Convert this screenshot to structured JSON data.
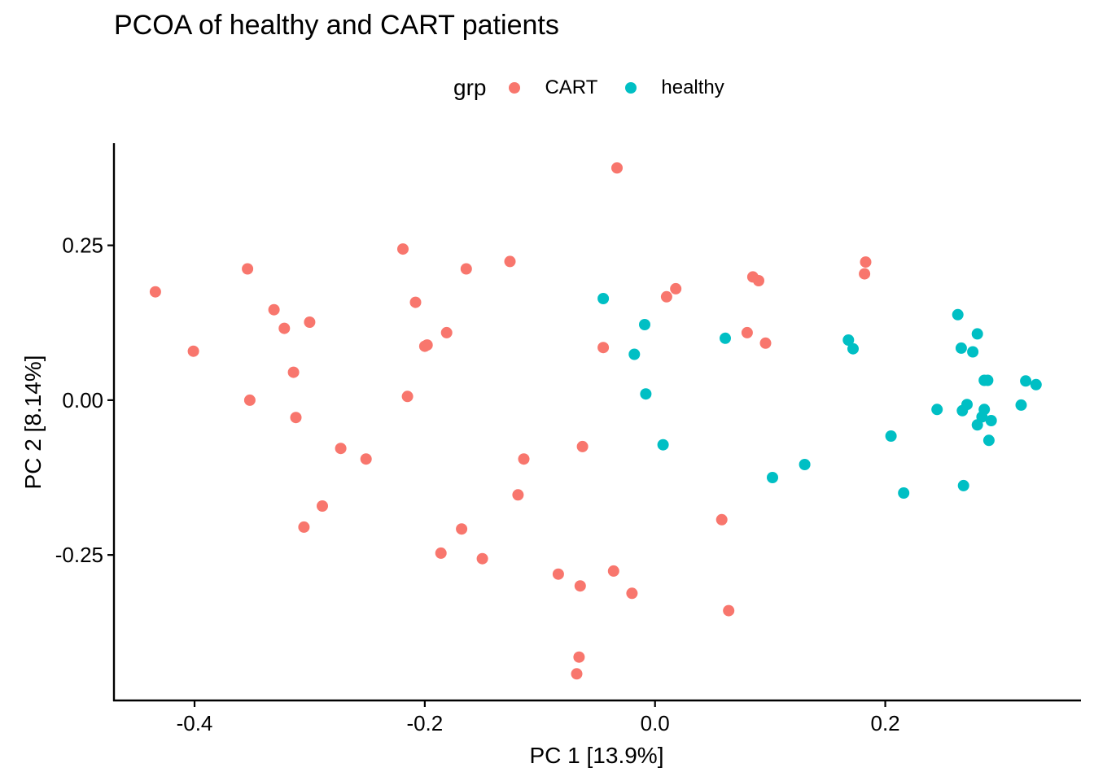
{
  "chart_data": {
    "type": "scatter",
    "title": "PCOA of healthy and CART patients",
    "xlabel": "PC 1 [13.9%]",
    "ylabel": "PC 2 [8.14%]",
    "xlim": [
      -0.47,
      0.37
    ],
    "ylim": [
      -0.485,
      0.415
    ],
    "x_ticks": [
      -0.4,
      -0.2,
      0.0,
      0.2
    ],
    "x_tick_labels": [
      "-0.4",
      "-0.2",
      "0.0",
      "0.2"
    ],
    "y_ticks": [
      -0.25,
      0.0,
      0.25
    ],
    "y_tick_labels": [
      "-0.25",
      "0.00",
      "0.25"
    ],
    "grid": false,
    "legend": {
      "title": "grp",
      "placement": "top"
    },
    "series": [
      {
        "name": "CART",
        "color": "#F8766D",
        "points": [
          [
            -0.434,
            0.175
          ],
          [
            -0.401,
            0.079
          ],
          [
            -0.354,
            0.212
          ],
          [
            -0.352,
            0.0
          ],
          [
            -0.331,
            0.146
          ],
          [
            -0.322,
            0.116
          ],
          [
            -0.314,
            0.045
          ],
          [
            -0.312,
            -0.028
          ],
          [
            -0.3,
            0.126
          ],
          [
            -0.305,
            -0.205
          ],
          [
            -0.289,
            -0.171
          ],
          [
            -0.273,
            -0.078
          ],
          [
            -0.251,
            -0.095
          ],
          [
            -0.219,
            0.244
          ],
          [
            -0.215,
            0.006
          ],
          [
            -0.208,
            0.158
          ],
          [
            -0.2,
            0.087
          ],
          [
            -0.198,
            0.089
          ],
          [
            -0.181,
            0.109
          ],
          [
            -0.164,
            0.212
          ],
          [
            -0.168,
            -0.208
          ],
          [
            -0.186,
            -0.247
          ],
          [
            -0.15,
            -0.256
          ],
          [
            -0.126,
            0.224
          ],
          [
            -0.114,
            -0.095
          ],
          [
            -0.119,
            -0.153
          ],
          [
            -0.063,
            -0.075
          ],
          [
            -0.084,
            -0.281
          ],
          [
            -0.065,
            -0.3
          ],
          [
            -0.066,
            -0.415
          ],
          [
            -0.068,
            -0.442
          ],
          [
            -0.033,
            0.375
          ],
          [
            -0.045,
            0.085
          ],
          [
            -0.036,
            -0.276
          ],
          [
            -0.02,
            -0.312
          ],
          [
            0.01,
            0.167
          ],
          [
            0.018,
            0.18
          ],
          [
            0.058,
            -0.193
          ],
          [
            0.064,
            -0.34
          ],
          [
            0.085,
            0.199
          ],
          [
            0.09,
            0.193
          ],
          [
            0.08,
            0.109
          ],
          [
            0.096,
            0.092
          ],
          [
            0.183,
            0.223
          ],
          [
            0.182,
            0.204
          ]
        ]
      },
      {
        "name": "healthy",
        "color": "#00BFC4",
        "points": [
          [
            -0.045,
            0.164
          ],
          [
            -0.009,
            0.122
          ],
          [
            -0.018,
            0.074
          ],
          [
            -0.008,
            0.01
          ],
          [
            0.007,
            -0.072
          ],
          [
            0.061,
            0.1
          ],
          [
            0.102,
            -0.125
          ],
          [
            0.13,
            -0.104
          ],
          [
            0.168,
            0.097
          ],
          [
            0.172,
            0.083
          ],
          [
            0.205,
            -0.058
          ],
          [
            0.216,
            -0.15
          ],
          [
            0.245,
            -0.015
          ],
          [
            0.263,
            0.138
          ],
          [
            0.266,
            0.084
          ],
          [
            0.267,
            -0.017
          ],
          [
            0.268,
            -0.138
          ],
          [
            0.271,
            -0.007
          ],
          [
            0.276,
            0.078
          ],
          [
            0.28,
            0.107
          ],
          [
            0.28,
            -0.04
          ],
          [
            0.284,
            -0.027
          ],
          [
            0.286,
            0.032
          ],
          [
            0.286,
            -0.015
          ],
          [
            0.289,
            0.032
          ],
          [
            0.29,
            -0.065
          ],
          [
            0.292,
            -0.033
          ],
          [
            0.318,
            -0.008
          ],
          [
            0.322,
            0.031
          ],
          [
            0.331,
            0.025
          ]
        ]
      }
    ]
  }
}
